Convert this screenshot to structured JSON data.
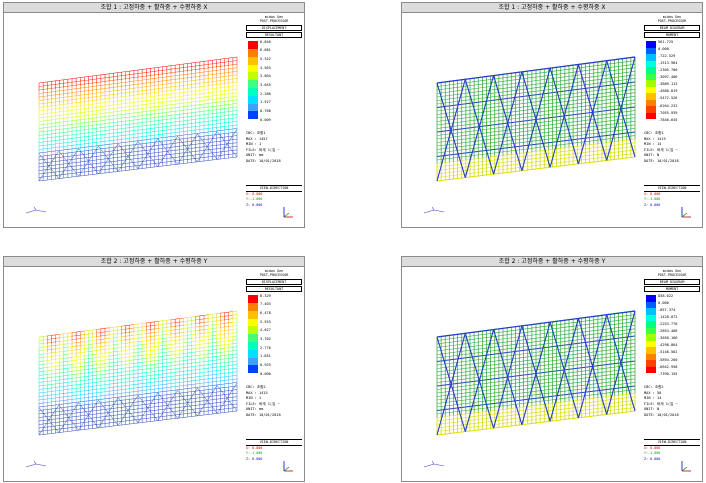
{
  "panels": [
    {
      "title": "조합 1 : 고정하중 + 활하중 + 수평하중 X",
      "header": [
        "midas Gen",
        "POST-PROCESSOR",
        "DISPLACEMENT",
        "RESULTANT"
      ],
      "legend": [
        "6.840",
        "6.081",
        "5.322",
        "4.563",
        "3.804",
        "3.045",
        "2.286",
        "1.527",
        "0.768",
        "0.009"
      ],
      "colors": [
        "#ff0000",
        "#ff8000",
        "#ffc000",
        "#ffff00",
        "#c0ff00",
        "#40ff80",
        "#00ffc0",
        "#00e0ff",
        "#40a0ff",
        "#0040ff"
      ],
      "info": [
        "CBC: 조합1",
        "MAX : 1457",
        "MIN : 1",
        "FILE: 버게 1(입 ~",
        "UNIT: mm",
        "DATE: 10/01/2018"
      ],
      "view": [
        "VIEW-DIRECTION",
        "X: 0.000",
        "Y:-1.000",
        "Z: 0.000"
      ],
      "mode": "disp"
    },
    {
      "title": "조합 1 : 고정하중 + 활하중 + 수평하중 X",
      "header": [
        "midas Gen",
        "POST-PROCESSOR",
        "BEAM DIAGRAM",
        "MOMENT"
      ],
      "legend": [
        "561.725",
        "0.000",
        "-722.529",
        "-1513.984",
        "-2305.700",
        "-3097.406",
        "-3889.113",
        "-4680.819",
        "-5472.526",
        "-6264.232",
        "-7055.939",
        "-7846.645"
      ],
      "colors": [
        "#0000ff",
        "#0060ff",
        "#00c0ff",
        "#00ffe0",
        "#00ff80",
        "#40ff40",
        "#a0ff00",
        "#ffff00",
        "#ffc000",
        "#ff8000",
        "#ff4000",
        "#ff0000"
      ],
      "info": [
        "CBC: 조합1",
        "MAX : 1415",
        "MIN : 14",
        "FILE: 버게 1(입 ~",
        "UNIT: N",
        "DATE: 10/01/2018"
      ],
      "view": [
        "VIEW-DIRECTION",
        "X: 0.000",
        "Y:-1.000",
        "Z: 0.000"
      ],
      "mode": "beam"
    },
    {
      "title": "조합 2 : 고정하중 + 활하중 + 수평하중 Y",
      "header": [
        "midas Gen",
        "POST-PROCESSOR",
        "DISPLACEMENT",
        "RESULTANT"
      ],
      "legend": [
        "8.329",
        "7.403",
        "6.478",
        "5.553",
        "4.627",
        "3.702",
        "2.776",
        "1.851",
        "0.925",
        "0.000"
      ],
      "colors": [
        "#ff0000",
        "#ff8000",
        "#ffc000",
        "#ffff00",
        "#c0ff00",
        "#40ff80",
        "#00ffc0",
        "#00e0ff",
        "#40a0ff",
        "#0040ff"
      ],
      "info": [
        "CBC: 조합2",
        "MAX : 1415",
        "MIN : 1",
        "FILE: 버게 1(입 ~",
        "UNIT: mm",
        "DATE: 10/01/2018"
      ],
      "view": [
        "VIEW-DIRECTION",
        "X: 0.000",
        "Y:-1.000",
        "Z: 0.000"
      ],
      "mode": "disp2"
    },
    {
      "title": "조합 2 : 고정하중 + 활하중 + 수평하중 Y",
      "header": [
        "midas Gen",
        "POST-PROCESSOR",
        "BEAM DIAGRAM",
        "MOMENT"
      ],
      "legend": [
        "838.022",
        "0.000",
        "-857.374",
        "-1428.072",
        "-2253.770",
        "-2853.468",
        "-3650.166",
        "-4298.864",
        "-5146.562",
        "-5894.260",
        "-6642.958",
        "-7390.155"
      ],
      "colors": [
        "#0000ff",
        "#0060ff",
        "#00c0ff",
        "#00ffe0",
        "#00ff80",
        "#40ff40",
        "#a0ff00",
        "#ffff00",
        "#ffc000",
        "#ff8000",
        "#ff4000",
        "#ff0000"
      ],
      "info": [
        "CBC: 조합2",
        "MAX : 50",
        "MIN : 14",
        "FILE: 버게 1(입 ~",
        "UNIT: N",
        "DATE: 10/01/2018"
      ],
      "view": [
        "VIEW-DIRECTION",
        "X: 0.000",
        "Y:-1.000",
        "Z: 0.000"
      ],
      "mode": "beam"
    }
  ]
}
